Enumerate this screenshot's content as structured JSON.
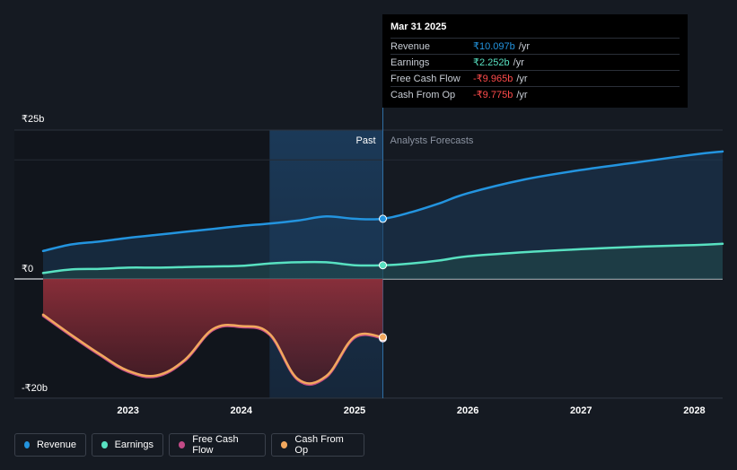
{
  "colors": {
    "revenue": "#2394df",
    "earnings": "#58e1c1",
    "free_cash_flow": "#c24a86",
    "cash_from_op": "#f2a85e",
    "background": "#151a22"
  },
  "tooltip": {
    "date": "Mar 31 2025",
    "rows": [
      {
        "label": "Revenue",
        "value": "₹10.097b",
        "unit": "/yr",
        "color": "#2394df"
      },
      {
        "label": "Earnings",
        "value": "₹2.252b",
        "unit": "/yr",
        "color": "#58e1c1"
      },
      {
        "label": "Free Cash Flow",
        "value": "-₹9.965b",
        "unit": "/yr",
        "color": "#ff4b4b"
      },
      {
        "label": "Cash From Op",
        "value": "-₹9.775b",
        "unit": "/yr",
        "color": "#ff4b4b"
      }
    ]
  },
  "legend": {
    "items": [
      {
        "label": "Revenue",
        "color": "#2394df"
      },
      {
        "label": "Earnings",
        "color": "#58e1c1"
      },
      {
        "label": "Free Cash Flow",
        "color": "#c24a86"
      },
      {
        "label": "Cash From Op",
        "color": "#f2a85e"
      }
    ]
  },
  "chart_data": {
    "type": "line",
    "y_unit": "₹b",
    "ylim": [
      -20,
      25
    ],
    "y_tick_labels": [
      {
        "value": 25,
        "label": "₹25b"
      },
      {
        "value": 0,
        "label": "₹0"
      },
      {
        "value": -20,
        "label": "-₹20b"
      }
    ],
    "xlim": [
      2022.25,
      2028.25
    ],
    "x_tick_labels": [
      {
        "value": 2023,
        "label": "2023"
      },
      {
        "value": 2024,
        "label": "2024"
      },
      {
        "value": 2025,
        "label": "2025"
      },
      {
        "value": 2026,
        "label": "2026"
      },
      {
        "value": 2027,
        "label": "2027"
      },
      {
        "value": 2028,
        "label": "2028"
      }
    ],
    "past_label": "Past",
    "forecast_label": "Analysts Forecasts",
    "highlight_start": 2024.25,
    "divider_x": 2025.25,
    "series": [
      {
        "name": "Revenue",
        "color": "#2394df",
        "fill": true,
        "x": [
          2022.25,
          2022.5,
          2022.75,
          2023.0,
          2023.25,
          2023.5,
          2023.75,
          2024.0,
          2024.25,
          2024.5,
          2024.75,
          2025.0,
          2025.25,
          2025.5,
          2025.75,
          2026.0,
          2026.5,
          2027.0,
          2027.5,
          2028.0,
          2028.25
        ],
        "values": [
          4.7,
          5.8,
          6.3,
          6.9,
          7.4,
          7.9,
          8.4,
          8.9,
          9.3,
          9.8,
          10.5,
          10.1,
          10.1,
          11.2,
          12.7,
          14.4,
          16.7,
          18.3,
          19.6,
          20.9,
          21.4
        ]
      },
      {
        "name": "Earnings",
        "color": "#58e1c1",
        "fill": true,
        "x": [
          2022.25,
          2022.5,
          2022.75,
          2023.0,
          2023.25,
          2023.5,
          2023.75,
          2024.0,
          2024.25,
          2024.5,
          2024.75,
          2025.0,
          2025.25,
          2025.5,
          2025.75,
          2026.0,
          2026.5,
          2027.0,
          2027.5,
          2028.0,
          2028.25
        ],
        "values": [
          1.0,
          1.6,
          1.7,
          1.9,
          1.9,
          2.0,
          2.1,
          2.2,
          2.6,
          2.8,
          2.8,
          2.3,
          2.3,
          2.6,
          3.1,
          3.8,
          4.5,
          5.0,
          5.4,
          5.7,
          5.9
        ]
      },
      {
        "name": "Free Cash Flow",
        "color": "#c24a86",
        "fill": true,
        "x": [
          2022.25,
          2022.5,
          2022.75,
          2023.0,
          2023.25,
          2023.5,
          2023.75,
          2024.0,
          2024.25,
          2024.5,
          2024.75,
          2025.0,
          2025.25
        ],
        "values": [
          -6.2,
          -9.6,
          -12.8,
          -15.6,
          -16.4,
          -13.8,
          -8.6,
          -8.1,
          -9.4,
          -17.0,
          -16.5,
          -9.9,
          -9.965
        ]
      },
      {
        "name": "Cash From Op",
        "color": "#f2a85e",
        "fill": false,
        "x": [
          2022.25,
          2022.5,
          2022.75,
          2023.0,
          2023.25,
          2023.5,
          2023.75,
          2024.0,
          2024.25,
          2024.5,
          2024.75,
          2025.0,
          2025.25
        ],
        "values": [
          -6.0,
          -9.4,
          -12.6,
          -15.4,
          -16.2,
          -13.6,
          -8.4,
          -7.9,
          -9.2,
          -16.8,
          -16.3,
          -9.7,
          -9.775
        ]
      }
    ]
  }
}
